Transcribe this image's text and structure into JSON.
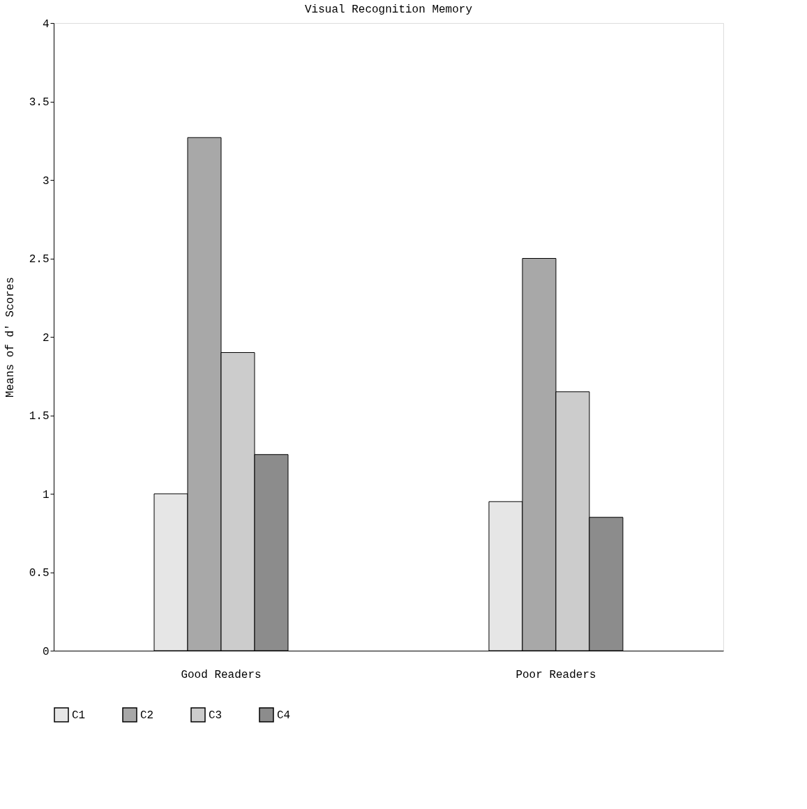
{
  "chart_data": {
    "type": "bar",
    "title": "Visual Recognition Memory",
    "ylabel": "Means of d' Scores",
    "categories": [
      "Good Readers",
      "Poor Readers"
    ],
    "series": [
      {
        "name": "C1",
        "color": "#e6e6e6",
        "values": [
          1.0,
          0.95
        ]
      },
      {
        "name": "C2",
        "color": "#a8a8a8",
        "values": [
          3.27,
          2.5
        ]
      },
      {
        "name": "C3",
        "color": "#cccccc",
        "values": [
          1.9,
          1.65
        ]
      },
      {
        "name": "C4",
        "color": "#8c8c8c",
        "values": [
          1.25,
          0.85
        ]
      }
    ],
    "ylim": [
      0,
      4
    ],
    "yticks": [
      0,
      0.5,
      1,
      1.5,
      2,
      2.5,
      3,
      3.5,
      4
    ],
    "grid": false,
    "legend": "bottom"
  }
}
